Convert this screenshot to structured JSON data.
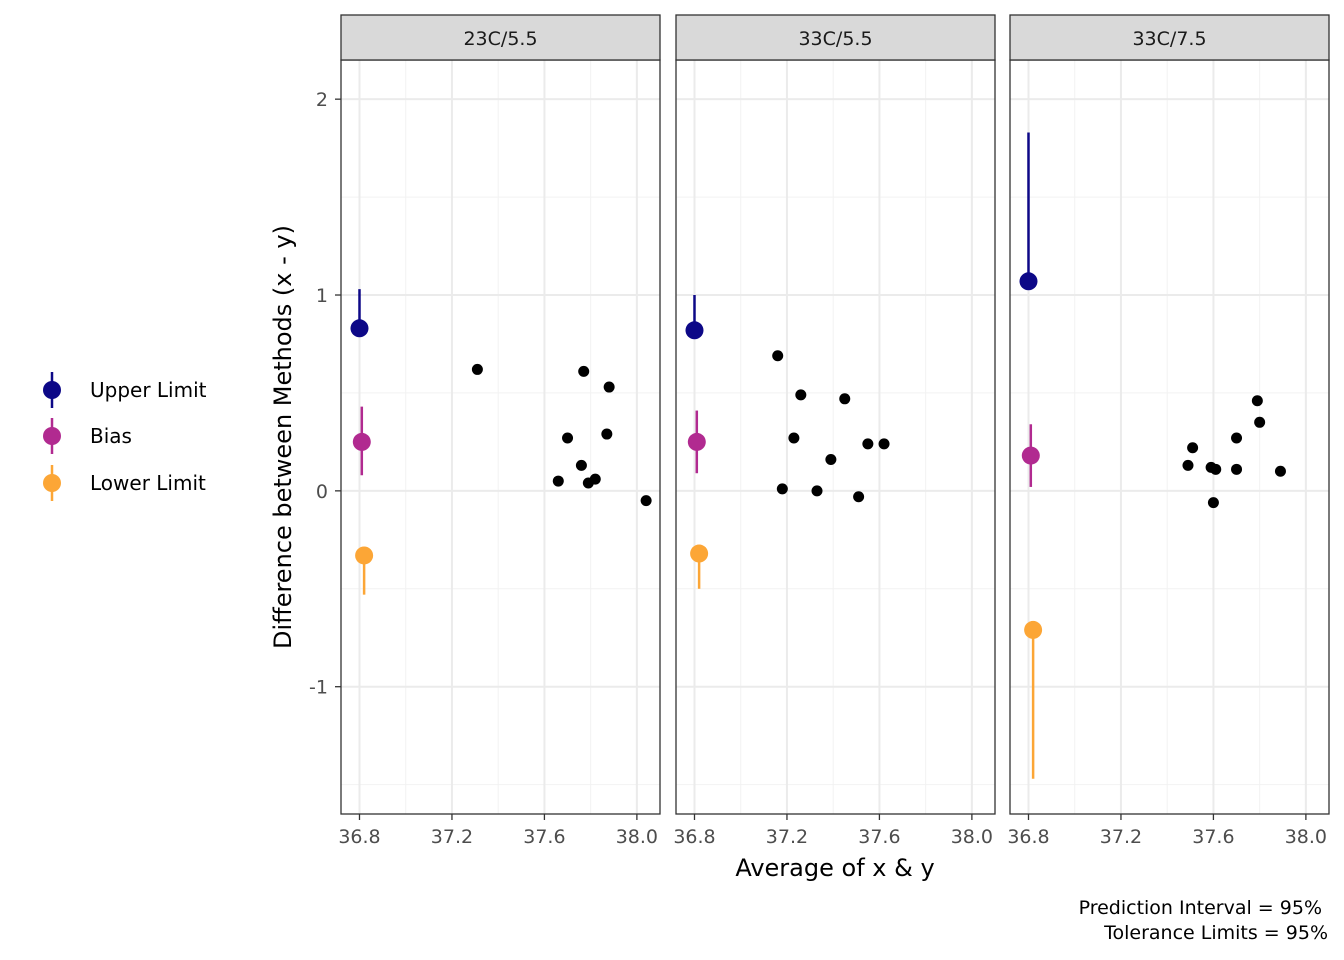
{
  "chart_data": {
    "type": "scatter",
    "xlabel": "Average of x & y",
    "ylabel": "Difference between Methods (x - y)",
    "xlim": [
      36.72,
      38.1
    ],
    "ylim": [
      -1.65,
      2.2
    ],
    "x_ticks": [
      36.8,
      37.2,
      37.6,
      38.0
    ],
    "x_tick_labels": [
      "36.8",
      "37.2",
      "37.6",
      "38.0"
    ],
    "y_ticks": [
      -1,
      0,
      1,
      2
    ],
    "y_tick_labels": [
      "-1",
      "0",
      "1",
      "2"
    ],
    "grid": true,
    "legend_position": "left",
    "legend": [
      {
        "name": "Upper Limit",
        "color": "#0d0887"
      },
      {
        "name": "Bias",
        "color": "#b12a90"
      },
      {
        "name": "Lower Limit",
        "color": "#fca636"
      }
    ],
    "caption": [
      "Prediction Interval = 95%",
      "Tolerance Limits = 95%"
    ],
    "panels": [
      {
        "label": "23C/5.5",
        "points": [
          [
            37.31,
            0.62
          ],
          [
            37.66,
            0.05
          ],
          [
            37.7,
            0.27
          ],
          [
            37.76,
            0.13
          ],
          [
            37.77,
            0.61
          ],
          [
            37.79,
            0.04
          ],
          [
            37.82,
            0.06
          ],
          [
            37.87,
            0.29
          ],
          [
            37.88,
            0.53
          ],
          [
            38.04,
            -0.05
          ]
        ],
        "limits": [
          {
            "name": "Upper Limit",
            "x": 36.8,
            "estimate": 0.83,
            "lower": 0.83,
            "upper": 1.03
          },
          {
            "name": "Bias",
            "x": 36.81,
            "estimate": 0.25,
            "lower": 0.08,
            "upper": 0.43
          },
          {
            "name": "Lower Limit",
            "x": 36.82,
            "estimate": -0.33,
            "lower": -0.53,
            "upper": -0.33
          }
        ]
      },
      {
        "label": "33C/5.5",
        "points": [
          [
            37.16,
            0.69
          ],
          [
            37.18,
            0.01
          ],
          [
            37.23,
            0.27
          ],
          [
            37.26,
            0.49
          ],
          [
            37.33,
            0.0
          ],
          [
            37.39,
            0.16
          ],
          [
            37.45,
            0.47
          ],
          [
            37.51,
            -0.03
          ],
          [
            37.55,
            0.24
          ],
          [
            37.62,
            0.24
          ]
        ],
        "limits": [
          {
            "name": "Upper Limit",
            "x": 36.8,
            "estimate": 0.82,
            "lower": 0.82,
            "upper": 1.0
          },
          {
            "name": "Bias",
            "x": 36.81,
            "estimate": 0.25,
            "lower": 0.09,
            "upper": 0.41
          },
          {
            "name": "Lower Limit",
            "x": 36.82,
            "estimate": -0.32,
            "lower": -0.5,
            "upper": -0.32
          }
        ]
      },
      {
        "label": "33C/7.5",
        "points": [
          [
            37.49,
            0.13
          ],
          [
            37.51,
            0.22
          ],
          [
            37.59,
            0.12
          ],
          [
            37.6,
            -0.06
          ],
          [
            37.61,
            0.11
          ],
          [
            37.7,
            0.11
          ],
          [
            37.7,
            0.27
          ],
          [
            37.79,
            0.46
          ],
          [
            37.8,
            0.35
          ],
          [
            37.89,
            0.1
          ]
        ],
        "limits": [
          {
            "name": "Upper Limit",
            "x": 36.8,
            "estimate": 1.07,
            "lower": 1.07,
            "upper": 1.83
          },
          {
            "name": "Bias",
            "x": 36.81,
            "estimate": 0.18,
            "lower": 0.02,
            "upper": 0.34
          },
          {
            "name": "Lower Limit",
            "x": 36.82,
            "estimate": -0.71,
            "lower": -1.47,
            "upper": -0.71
          }
        ]
      }
    ]
  }
}
